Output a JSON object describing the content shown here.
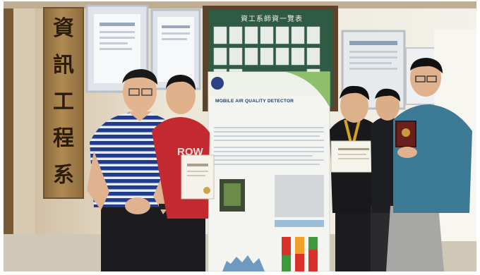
{
  "sign": {
    "characters": [
      "資",
      "訊",
      "工",
      "程",
      "系"
    ]
  },
  "board": {
    "heading": "資工系師資一覽表"
  },
  "poster": {
    "title": "MOBILE AIR QUALITY DETECTOR"
  },
  "colors": {
    "wall": "#ece6d6",
    "floor": "#c9c2b2",
    "sign_wood": "#a07c48",
    "poster_white": "#f4f5f1",
    "shirt_stripe_blue": "#1f3d8a",
    "shirt_red": "#c22a30",
    "shirt_teal": "#3c7a95",
    "poster_bar_red": "#d9322b",
    "poster_bar_green": "#3b9a3a",
    "poster_bar_orange": "#f0a12a"
  }
}
